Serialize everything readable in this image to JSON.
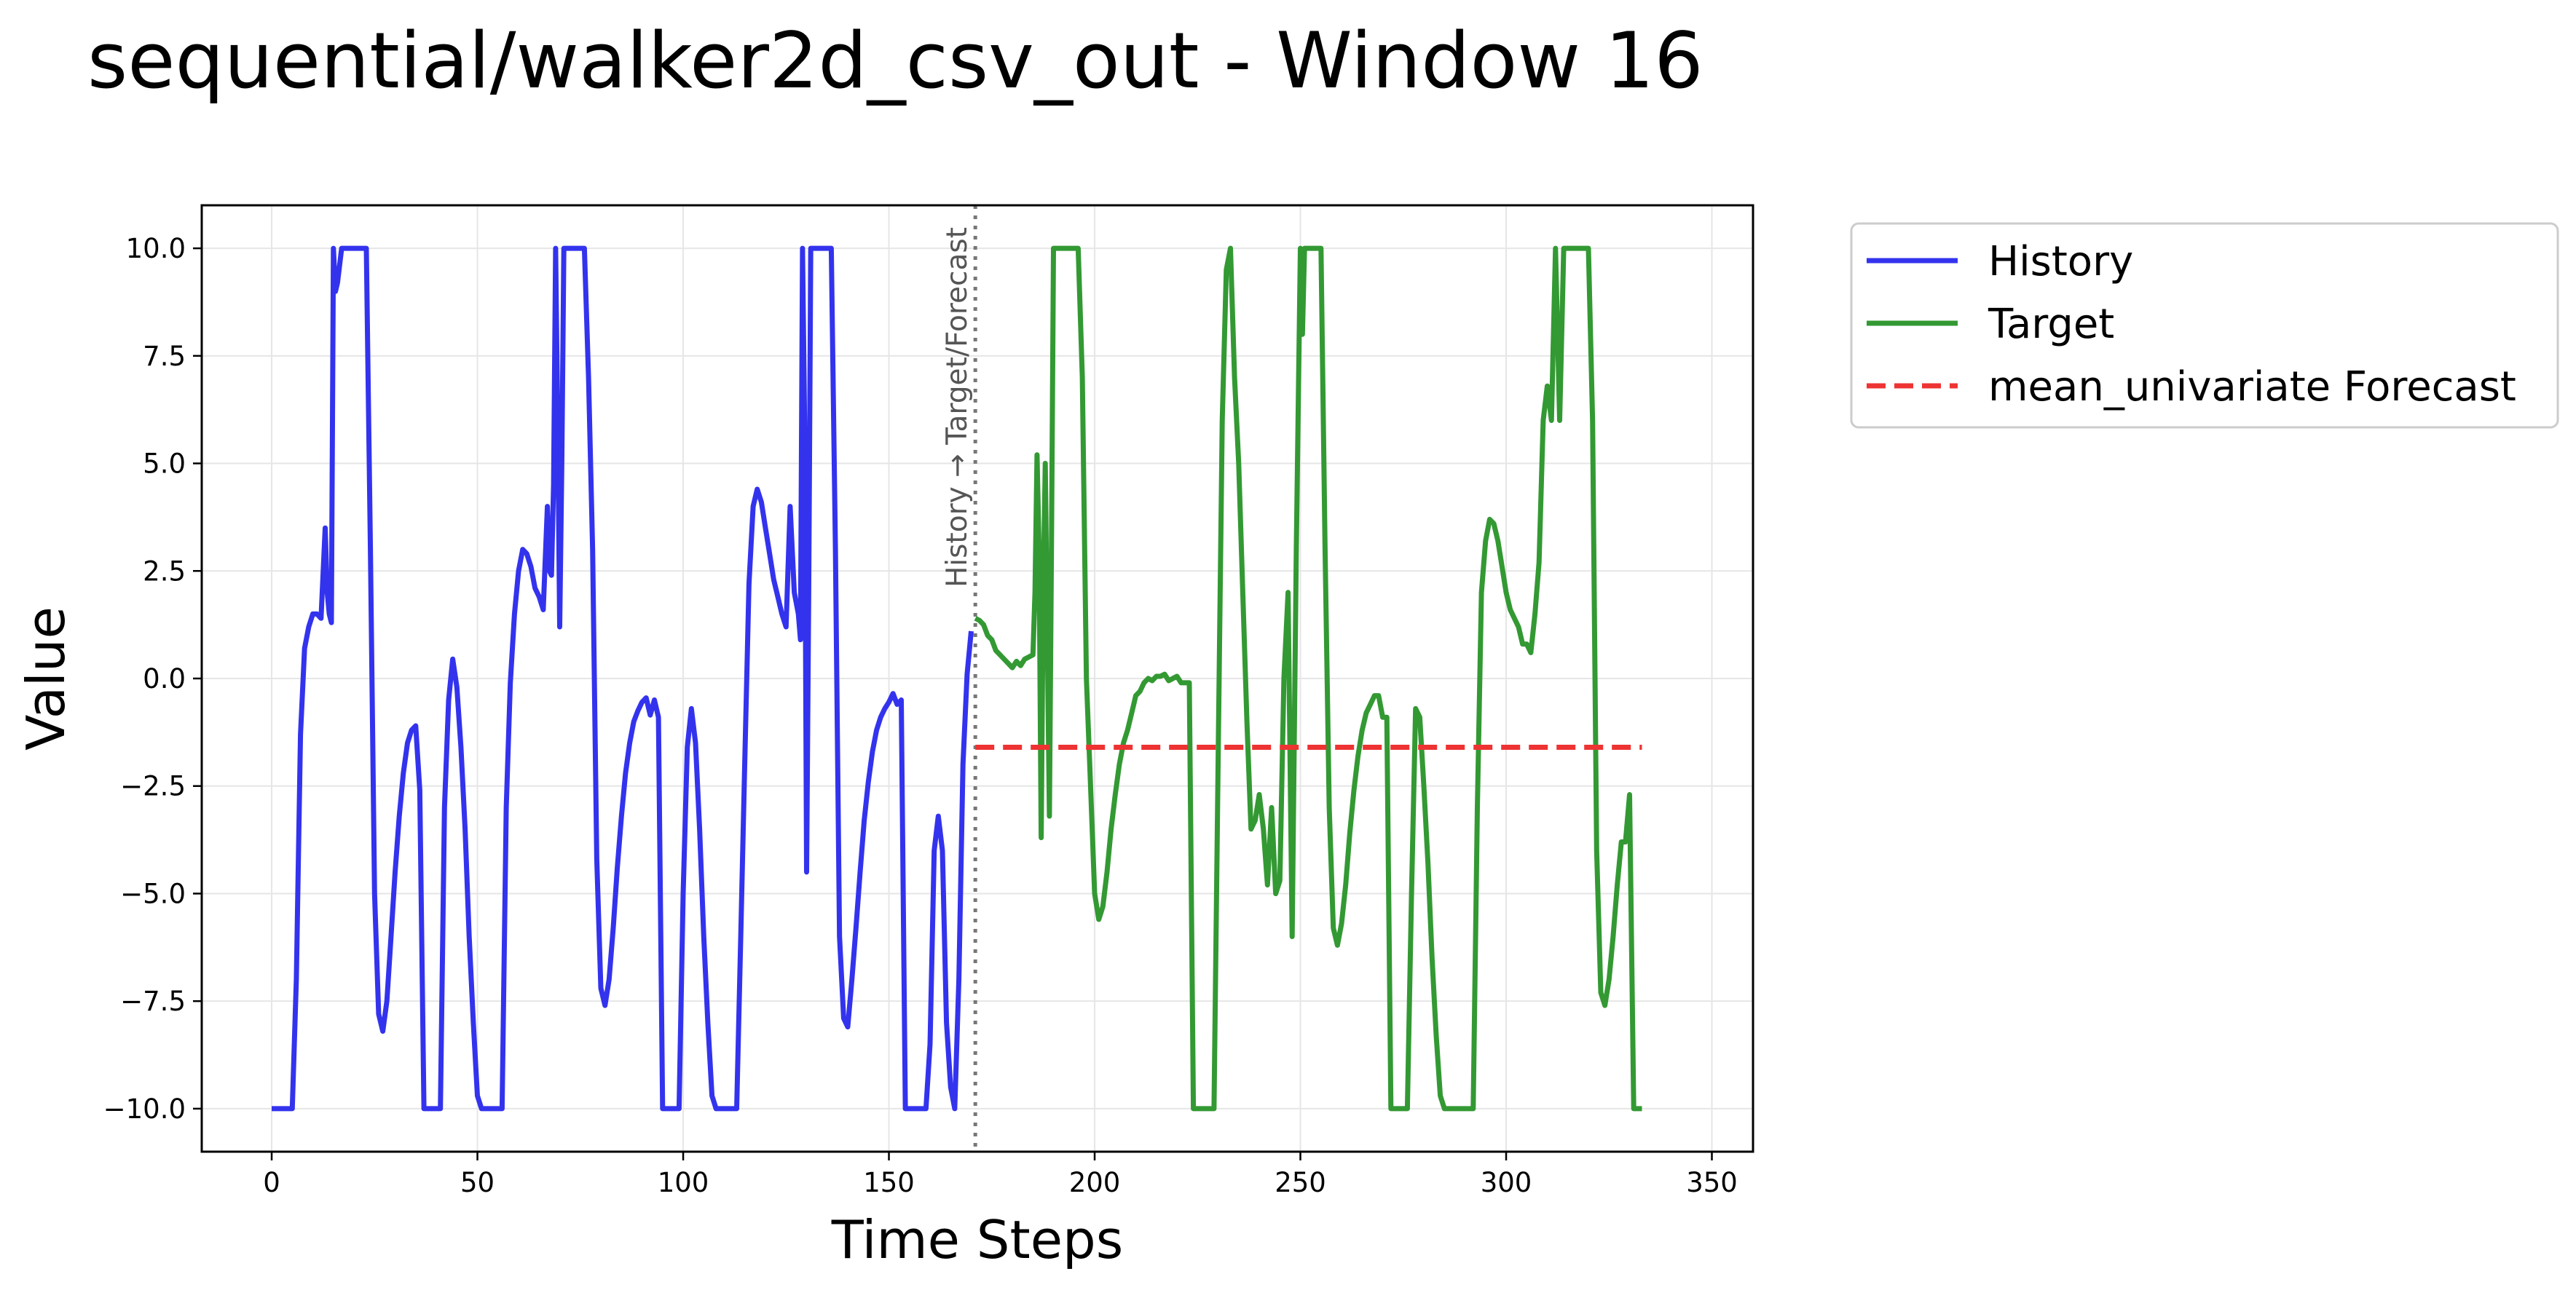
{
  "chart_data": {
    "type": "line",
    "title": "sequential/walker2d_csv_out - Window 16",
    "xlabel": "Time Steps",
    "ylabel": "Value",
    "xlim": [
      -17,
      360
    ],
    "ylim": [
      -11,
      11
    ],
    "xticks": [
      0,
      50,
      100,
      150,
      200,
      250,
      300,
      350
    ],
    "xtick_labels": [
      "0",
      "50",
      "100",
      "150",
      "200",
      "250",
      "300",
      "350"
    ],
    "yticks": [
      10.0,
      7.5,
      5.0,
      2.5,
      0.0,
      -2.5,
      -5.0,
      -7.5,
      -10.0
    ],
    "ytick_labels": [
      "10.0",
      "7.5",
      "5.0",
      "2.5",
      "0.0",
      "−2.5",
      "−5.0",
      "−7.5",
      "−10.0"
    ],
    "grid": true,
    "legend_position": "outside-top-right",
    "divider": {
      "x": 171,
      "label": "History → Target/Forecast",
      "color": "#777777"
    },
    "series": [
      {
        "name": "History",
        "color": "#3333ee",
        "style": "solid",
        "points": [
          [
            0,
            -10
          ],
          [
            4,
            -10
          ],
          [
            5,
            -10
          ],
          [
            6,
            -7
          ],
          [
            7,
            -1.3
          ],
          [
            8,
            0.7
          ],
          [
            9,
            1.2
          ],
          [
            10,
            1.5
          ],
          [
            11,
            1.5
          ],
          [
            12,
            1.4
          ],
          [
            13,
            3.5
          ],
          [
            13.5,
            2
          ],
          [
            14,
            1.5
          ],
          [
            14.5,
            1.3
          ],
          [
            15,
            10
          ],
          [
            15.5,
            9
          ],
          [
            16,
            9.2
          ],
          [
            17,
            10
          ],
          [
            18,
            10
          ],
          [
            22,
            10
          ],
          [
            23,
            10
          ],
          [
            24,
            3
          ],
          [
            25,
            -5
          ],
          [
            26,
            -7.8
          ],
          [
            27,
            -8.2
          ],
          [
            28,
            -7.5
          ],
          [
            29,
            -6
          ],
          [
            30,
            -4.5
          ],
          [
            31,
            -3.2
          ],
          [
            32,
            -2.2
          ],
          [
            33,
            -1.5
          ],
          [
            34,
            -1.2
          ],
          [
            35,
            -1.1
          ],
          [
            36,
            -2.6
          ],
          [
            37,
            -10
          ],
          [
            40,
            -10
          ],
          [
            41,
            -10
          ],
          [
            42,
            -3
          ],
          [
            43,
            -0.5
          ],
          [
            44,
            0.45
          ],
          [
            45,
            -0.2
          ],
          [
            46,
            -1.6
          ],
          [
            47,
            -3.5
          ],
          [
            48,
            -6
          ],
          [
            49,
            -8
          ],
          [
            50,
            -9.7
          ],
          [
            51,
            -10
          ],
          [
            55,
            -10
          ],
          [
            56,
            -10
          ],
          [
            57,
            -3
          ],
          [
            58,
            -0.1
          ],
          [
            59,
            1.5
          ],
          [
            60,
            2.5
          ],
          [
            61,
            3
          ],
          [
            62,
            2.9
          ],
          [
            63,
            2.6
          ],
          [
            64,
            2.1
          ],
          [
            65,
            1.9
          ],
          [
            66,
            1.6
          ],
          [
            67,
            4
          ],
          [
            67.5,
            2.5
          ],
          [
            68,
            2.4
          ],
          [
            68.5,
            4.5
          ],
          [
            69,
            10
          ],
          [
            69.5,
            6
          ],
          [
            70,
            1.2
          ],
          [
            70.5,
            5
          ],
          [
            71,
            10
          ],
          [
            74,
            10
          ],
          [
            76,
            10
          ],
          [
            77,
            7
          ],
          [
            78,
            3
          ],
          [
            79,
            -4.2
          ],
          [
            80,
            -7.2
          ],
          [
            81,
            -7.6
          ],
          [
            82,
            -7
          ],
          [
            83,
            -5.8
          ],
          [
            84,
            -4.4
          ],
          [
            85,
            -3.2
          ],
          [
            86,
            -2.2
          ],
          [
            87,
            -1.5
          ],
          [
            88,
            -1
          ],
          [
            89,
            -0.75
          ],
          [
            90,
            -0.55
          ],
          [
            91,
            -0.45
          ],
          [
            92,
            -0.85
          ],
          [
            93,
            -0.5
          ],
          [
            94,
            -0.9
          ],
          [
            95,
            -10
          ],
          [
            98,
            -10
          ],
          [
            99,
            -10
          ],
          [
            100,
            -5
          ],
          [
            101,
            -1.6
          ],
          [
            102,
            -0.7
          ],
          [
            103,
            -1.5
          ],
          [
            104,
            -3.5
          ],
          [
            105,
            -6
          ],
          [
            106,
            -8
          ],
          [
            107,
            -9.7
          ],
          [
            108,
            -10
          ],
          [
            112,
            -10
          ],
          [
            113,
            -10
          ],
          [
            114,
            -6
          ],
          [
            115,
            -1.8
          ],
          [
            116,
            2.2
          ],
          [
            117,
            4
          ],
          [
            118,
            4.4
          ],
          [
            119,
            4.1
          ],
          [
            120,
            3.5
          ],
          [
            121,
            2.9
          ],
          [
            122,
            2.3
          ],
          [
            123,
            1.9
          ],
          [
            124,
            1.5
          ],
          [
            125,
            1.2
          ],
          [
            126,
            4
          ],
          [
            127,
            2
          ],
          [
            128,
            1.5
          ],
          [
            128.5,
            0.9
          ],
          [
            129,
            10
          ],
          [
            129.5,
            6
          ],
          [
            130,
            -4.5
          ],
          [
            130.5,
            2
          ],
          [
            131,
            10
          ],
          [
            135,
            10
          ],
          [
            136,
            10
          ],
          [
            137,
            3
          ],
          [
            138,
            -6
          ],
          [
            139,
            -7.9
          ],
          [
            140,
            -8.1
          ],
          [
            141,
            -7
          ],
          [
            142,
            -5.8
          ],
          [
            143,
            -4.5
          ],
          [
            144,
            -3.3
          ],
          [
            145,
            -2.4
          ],
          [
            146,
            -1.7
          ],
          [
            147,
            -1.2
          ],
          [
            148,
            -0.9
          ],
          [
            149,
            -0.7
          ],
          [
            150,
            -0.55
          ],
          [
            151,
            -0.35
          ],
          [
            152,
            -0.6
          ],
          [
            153,
            -0.5
          ],
          [
            154,
            -10
          ],
          [
            158,
            -10
          ],
          [
            159,
            -10
          ],
          [
            160,
            -8.5
          ],
          [
            161,
            -4
          ],
          [
            162,
            -3.2
          ],
          [
            163,
            -4
          ],
          [
            164,
            -8
          ],
          [
            165,
            -9.5
          ],
          [
            166,
            -10
          ],
          [
            167,
            -7
          ],
          [
            168,
            -2
          ],
          [
            169,
            0.1
          ],
          [
            170,
            1.1
          ]
        ]
      },
      {
        "name": "Target",
        "color": "#339933",
        "style": "solid",
        "points": [
          [
            171,
            1.4
          ],
          [
            172,
            1.35
          ],
          [
            173,
            1.25
          ],
          [
            174,
            1.0
          ],
          [
            175,
            0.9
          ],
          [
            176,
            0.65
          ],
          [
            177,
            0.55
          ],
          [
            178,
            0.45
          ],
          [
            179,
            0.35
          ],
          [
            180,
            0.25
          ],
          [
            181,
            0.4
          ],
          [
            182,
            0.3
          ],
          [
            183,
            0.45
          ],
          [
            184,
            0.5
          ],
          [
            185,
            0.55
          ],
          [
            185.5,
            2
          ],
          [
            186,
            5.2
          ],
          [
            186.5,
            3
          ],
          [
            187,
            -3.7
          ],
          [
            187.5,
            2
          ],
          [
            188,
            5
          ],
          [
            188.5,
            1
          ],
          [
            189,
            -3.2
          ],
          [
            189.5,
            3
          ],
          [
            190,
            10
          ],
          [
            192,
            10
          ],
          [
            194,
            10
          ],
          [
            196,
            10
          ],
          [
            197,
            7
          ],
          [
            198,
            0
          ],
          [
            199,
            -2.5
          ],
          [
            200,
            -5
          ],
          [
            201,
            -5.6
          ],
          [
            202,
            -5.3
          ],
          [
            203,
            -4.5
          ],
          [
            204,
            -3.5
          ],
          [
            205,
            -2.7
          ],
          [
            206,
            -2
          ],
          [
            207,
            -1.5
          ],
          [
            208,
            -1.2
          ],
          [
            209,
            -0.8
          ],
          [
            210,
            -0.4
          ],
          [
            211,
            -0.3
          ],
          [
            212,
            -0.1
          ],
          [
            213,
            0
          ],
          [
            214,
            -0.05
          ],
          [
            215,
            0.05
          ],
          [
            216,
            0.05
          ],
          [
            217,
            0.1
          ],
          [
            218,
            -0.05
          ],
          [
            219,
            0
          ],
          [
            220,
            0.05
          ],
          [
            221,
            -0.1
          ],
          [
            222,
            -0.1
          ],
          [
            223,
            -0.1
          ],
          [
            224,
            -10
          ],
          [
            228,
            -10
          ],
          [
            229,
            -10
          ],
          [
            230,
            -2
          ],
          [
            231,
            6
          ],
          [
            232,
            9.5
          ],
          [
            233,
            10
          ],
          [
            234,
            7
          ],
          [
            235,
            5
          ],
          [
            236,
            2
          ],
          [
            237,
            -1
          ],
          [
            238,
            -3.5
          ],
          [
            239,
            -3.3
          ],
          [
            240,
            -2.7
          ],
          [
            241,
            -3.5
          ],
          [
            242,
            -4.8
          ],
          [
            243,
            -3
          ],
          [
            244,
            -5
          ],
          [
            245,
            -4.7
          ],
          [
            246,
            0
          ],
          [
            247,
            2
          ],
          [
            248,
            -6
          ],
          [
            249,
            3
          ],
          [
            250,
            10
          ],
          [
            250.5,
            8
          ],
          [
            251,
            10
          ],
          [
            254,
            10
          ],
          [
            255,
            10
          ],
          [
            256,
            3
          ],
          [
            257,
            -3
          ],
          [
            258,
            -5.8
          ],
          [
            259,
            -6.2
          ],
          [
            260,
            -5.7
          ],
          [
            261,
            -4.8
          ],
          [
            262,
            -3.6
          ],
          [
            263,
            -2.6
          ],
          [
            264,
            -1.8
          ],
          [
            265,
            -1.2
          ],
          [
            266,
            -0.8
          ],
          [
            267,
            -0.6
          ],
          [
            268,
            -0.4
          ],
          [
            269,
            -0.4
          ],
          [
            270,
            -0.9
          ],
          [
            271,
            -0.9
          ],
          [
            272,
            -10
          ],
          [
            275,
            -10
          ],
          [
            276,
            -10
          ],
          [
            277,
            -5
          ],
          [
            278,
            -0.7
          ],
          [
            279,
            -0.9
          ],
          [
            280,
            -2.5
          ],
          [
            281,
            -4.3
          ],
          [
            282,
            -6.5
          ],
          [
            283,
            -8.3
          ],
          [
            284,
            -9.7
          ],
          [
            285,
            -10
          ],
          [
            291,
            -10
          ],
          [
            292,
            -10
          ],
          [
            293,
            -3
          ],
          [
            294,
            2
          ],
          [
            295,
            3.2
          ],
          [
            296,
            3.7
          ],
          [
            297,
            3.6
          ],
          [
            298,
            3.2
          ],
          [
            299,
            2.6
          ],
          [
            300,
            2
          ],
          [
            301,
            1.6
          ],
          [
            302,
            1.4
          ],
          [
            303,
            1.2
          ],
          [
            304,
            0.8
          ],
          [
            305,
            0.8
          ],
          [
            306,
            0.6
          ],
          [
            307,
            1.5
          ],
          [
            308,
            2.7
          ],
          [
            309,
            6
          ],
          [
            310,
            6.8
          ],
          [
            311,
            6
          ],
          [
            312,
            10
          ],
          [
            313,
            6
          ],
          [
            314,
            10
          ],
          [
            316,
            10
          ],
          [
            318,
            10
          ],
          [
            320,
            10
          ],
          [
            321,
            6
          ],
          [
            322,
            -4
          ],
          [
            323,
            -7.3
          ],
          [
            324,
            -7.6
          ],
          [
            325,
            -7
          ],
          [
            326,
            -6
          ],
          [
            327,
            -4.8
          ],
          [
            328,
            -3.8
          ],
          [
            329,
            -3.8
          ],
          [
            330,
            -2.7
          ],
          [
            331,
            -10
          ],
          [
            333,
            -10
          ]
        ]
      },
      {
        "name": "mean_univariate Forecast",
        "color": "#ee3333",
        "style": "dashed",
        "points": [
          [
            171,
            -1.6
          ],
          [
            333,
            -1.6
          ]
        ]
      }
    ]
  }
}
